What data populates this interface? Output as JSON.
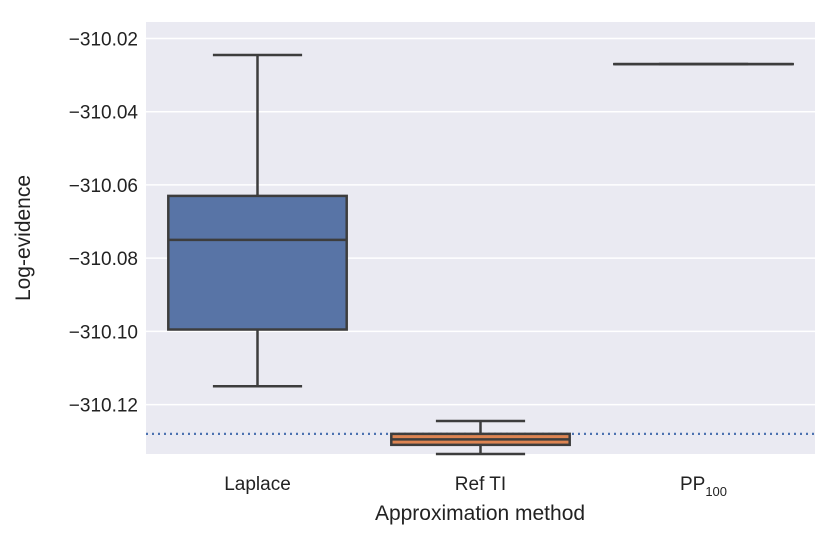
{
  "chart_data": {
    "type": "box",
    "xlabel": "Approximation method",
    "ylabel": "Log-evidence",
    "categories": [
      {
        "label": "Laplace",
        "sub": ""
      },
      {
        "label": "Ref TI",
        "sub": ""
      },
      {
        "label": "PP",
        "sub": "100"
      }
    ],
    "ylim": [
      -310.1335,
      -310.0155
    ],
    "yticks": [
      -310.02,
      -310.04,
      -310.06,
      -310.08,
      -310.1,
      -310.12
    ],
    "ytick_labels": [
      "−310.02",
      "−310.04",
      "−310.06",
      "−310.08",
      "−310.10",
      "−310.12"
    ],
    "grid": true,
    "boxes": [
      {
        "category": "Laplace",
        "whisker_low": -310.115,
        "q1": -310.0995,
        "median": -310.075,
        "q3": -310.063,
        "whisker_high": -310.0245,
        "color": "#5874a6"
      },
      {
        "category": "Ref TI",
        "whisker_low": -310.1335,
        "q1": -310.131,
        "median": -310.1295,
        "q3": -310.128,
        "whisker_high": -310.1245,
        "color": "#dd8452"
      },
      {
        "category": "PP100",
        "whisker_low": -310.027,
        "q1": -310.027,
        "median": -310.027,
        "q3": -310.027,
        "whisker_high": -310.027,
        "color": "#55a868"
      }
    ],
    "reference_line": {
      "y": -310.128,
      "style": "dotted",
      "color": "#4c72b0"
    }
  },
  "colors": {
    "plot_background": "#eaeaf2",
    "grid": "#ffffff",
    "box_edge": "#3d3d3d"
  }
}
